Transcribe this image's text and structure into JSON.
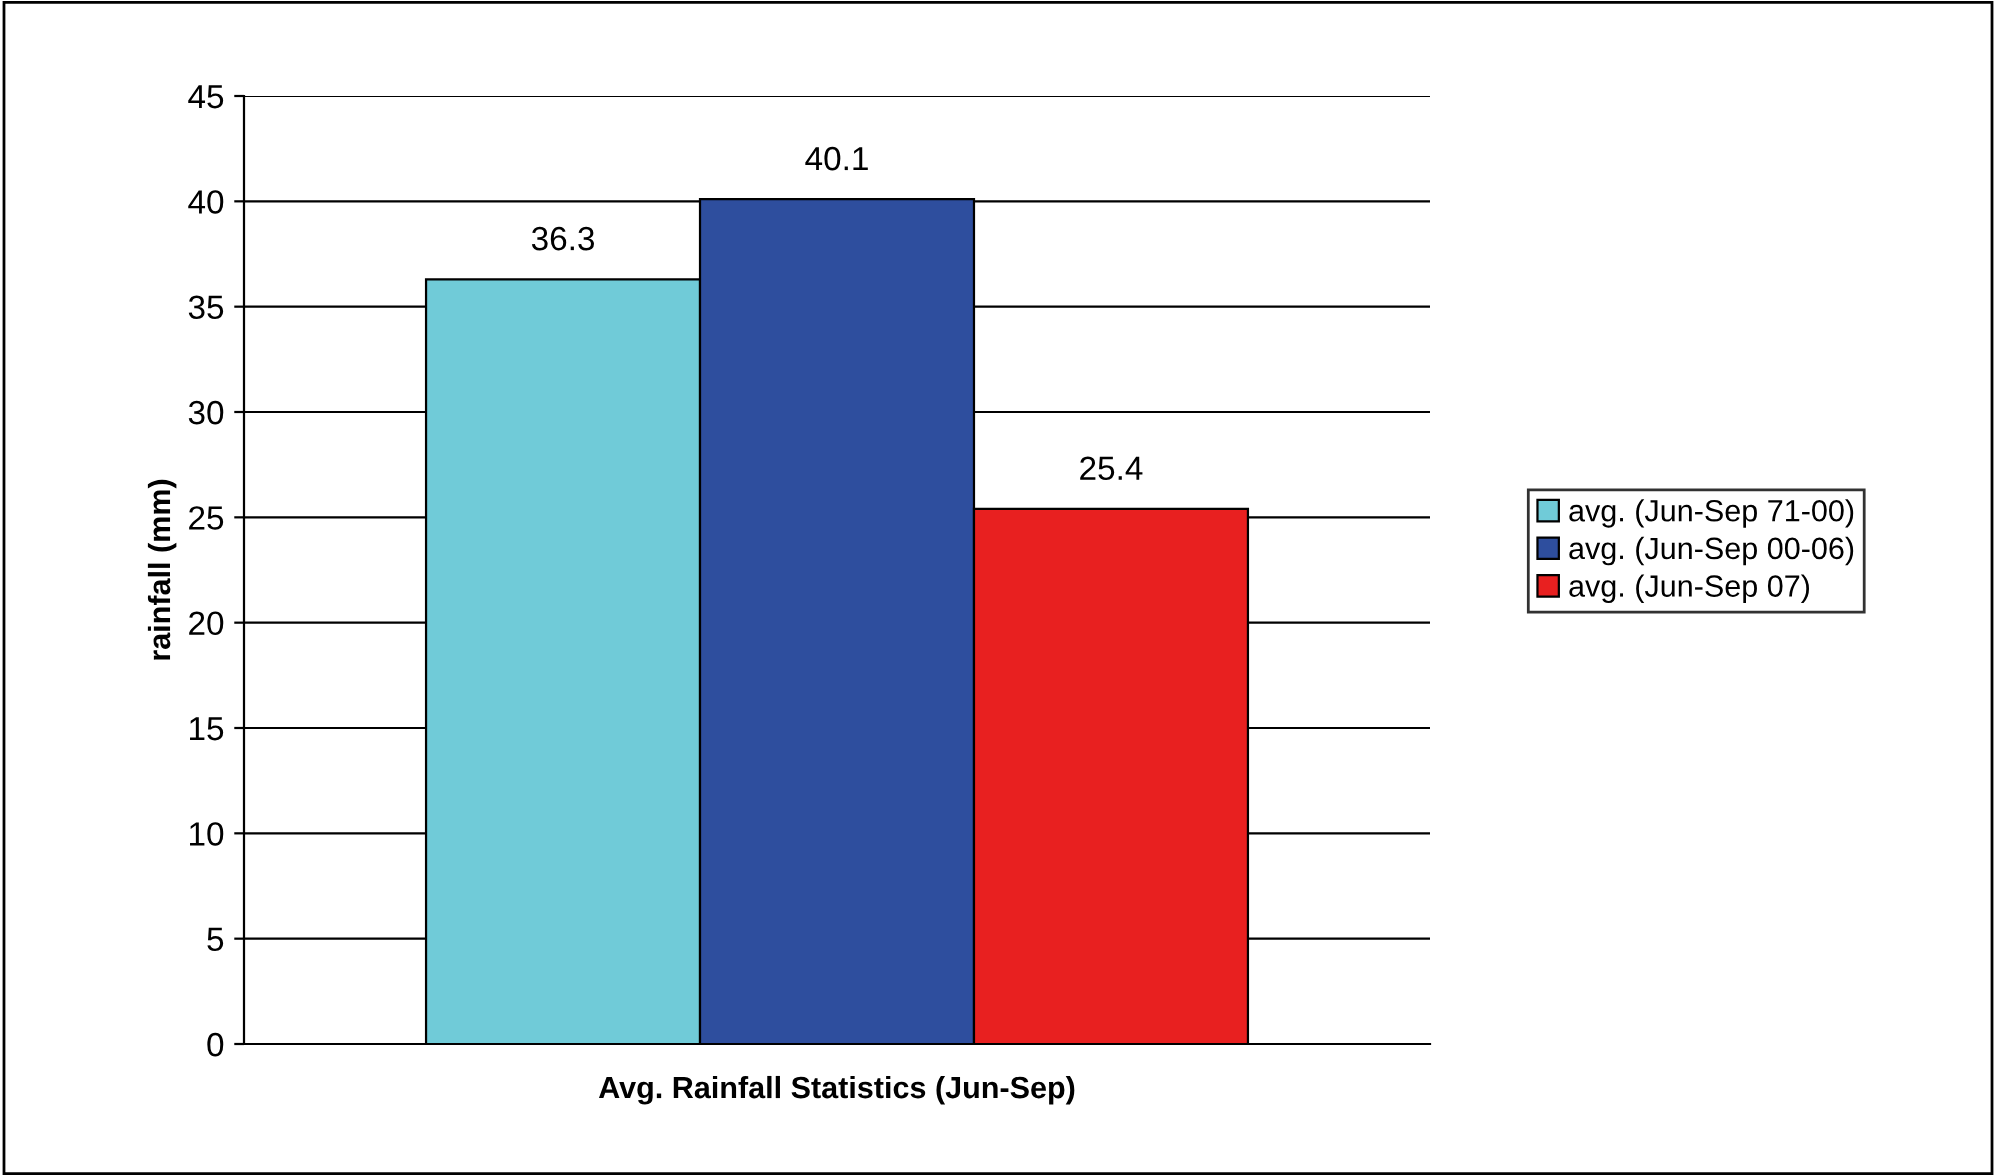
{
  "chart_data": {
    "type": "bar",
    "xlabel": "Avg. Rainfall Statistics (Jun-Sep)",
    "ylabel": "rainfall (mm)",
    "categories": [
      null
    ],
    "series": [
      {
        "name": "avg. (Jun-Sep 71-00)",
        "color": "#70cbd8",
        "values": [
          36.3
        ]
      },
      {
        "name": "avg. (Jun-Sep 00-06)",
        "color": "#2e4e9e",
        "values": [
          40.1
        ]
      },
      {
        "name": "avg. (Jun-Sep 07)",
        "color": "#e82020",
        "values": [
          25.4
        ]
      }
    ],
    "ylim": [
      0,
      45
    ],
    "yticks": [
      0,
      5,
      10,
      15,
      20,
      25,
      30,
      35,
      40,
      45
    ],
    "grid": "y",
    "legend": "right",
    "data_labels": true
  }
}
